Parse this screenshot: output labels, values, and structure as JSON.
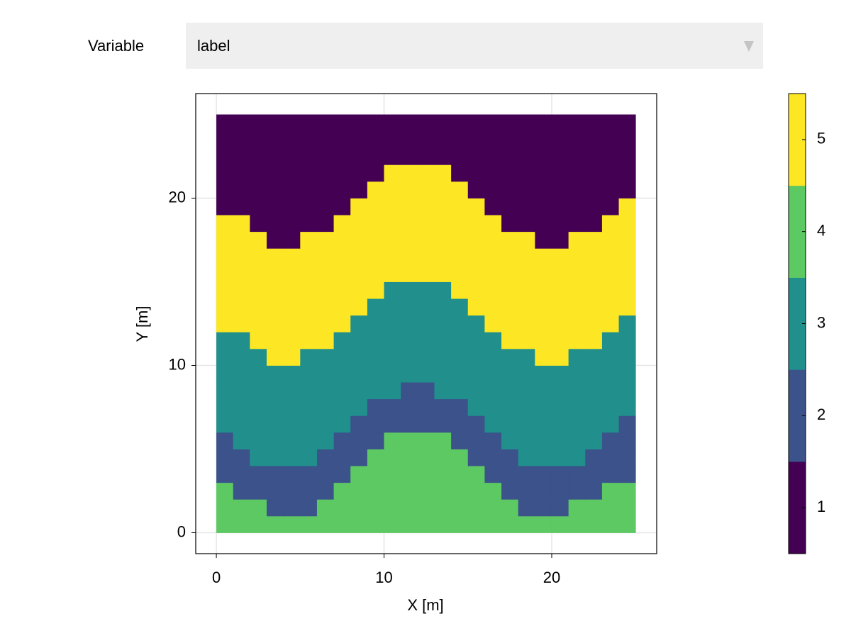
{
  "controls": {
    "label": "Variable",
    "selected": "label"
  },
  "chart_data": {
    "type": "heatmap",
    "xlabel": "X [m]",
    "ylabel": "Y [m]",
    "x": [
      0.5,
      1.5,
      2.5,
      3.5,
      4.5,
      5.5,
      6.5,
      7.5,
      8.5,
      9.5,
      10.5,
      11.5,
      12.5,
      13.5,
      14.5,
      15.5,
      16.5,
      17.5,
      18.5,
      19.5,
      20.5,
      21.5,
      22.5,
      23.5,
      24.5
    ],
    "y": [
      0.5,
      1.5,
      2.5,
      3.5,
      4.5,
      5.5,
      6.5,
      7.5,
      8.5,
      9.5,
      10.5,
      11.5,
      12.5,
      13.5,
      14.5,
      15.5,
      16.5,
      17.5,
      18.5,
      19.5,
      20.5,
      21.5,
      22.5,
      23.5,
      24.5
    ],
    "z": [
      [
        4,
        4,
        4,
        4,
        4,
        4,
        4,
        4,
        4,
        4,
        4,
        4,
        4,
        4,
        4,
        4,
        4,
        4,
        4,
        4,
        4,
        4,
        4,
        4,
        4
      ],
      [
        4,
        4,
        4,
        2,
        2,
        2,
        4,
        4,
        4,
        4,
        4,
        4,
        4,
        4,
        4,
        4,
        4,
        4,
        2,
        2,
        2,
        4,
        4,
        4,
        4
      ],
      [
        4,
        2,
        2,
        2,
        2,
        2,
        2,
        4,
        4,
        4,
        4,
        4,
        4,
        4,
        4,
        4,
        4,
        2,
        2,
        2,
        2,
        2,
        2,
        4,
        4
      ],
      [
        2,
        2,
        2,
        2,
        2,
        2,
        2,
        2,
        4,
        4,
        4,
        4,
        4,
        4,
        4,
        4,
        2,
        2,
        2,
        2,
        2,
        2,
        2,
        2,
        2
      ],
      [
        2,
        2,
        3,
        3,
        3,
        3,
        2,
        2,
        2,
        4,
        4,
        4,
        4,
        4,
        4,
        2,
        2,
        2,
        3,
        3,
        3,
        3,
        2,
        2,
        2
      ],
      [
        2,
        3,
        3,
        3,
        3,
        3,
        3,
        2,
        2,
        2,
        4,
        4,
        4,
        4,
        2,
        2,
        2,
        3,
        3,
        3,
        3,
        3,
        3,
        2,
        2
      ],
      [
        3,
        3,
        3,
        3,
        3,
        3,
        3,
        3,
        2,
        2,
        2,
        2,
        2,
        2,
        2,
        2,
        3,
        3,
        3,
        3,
        3,
        3,
        3,
        3,
        2
      ],
      [
        3,
        3,
        3,
        3,
        3,
        3,
        3,
        3,
        3,
        2,
        2,
        2,
        2,
        2,
        2,
        3,
        3,
        3,
        3,
        3,
        3,
        3,
        3,
        3,
        3
      ],
      [
        3,
        3,
        3,
        3,
        3,
        3,
        3,
        3,
        3,
        3,
        3,
        2,
        2,
        3,
        3,
        3,
        3,
        3,
        3,
        3,
        3,
        3,
        3,
        3,
        3
      ],
      [
        3,
        3,
        3,
        3,
        3,
        3,
        3,
        3,
        3,
        3,
        3,
        3,
        3,
        3,
        3,
        3,
        3,
        3,
        3,
        3,
        3,
        3,
        3,
        3,
        3
      ],
      [
        3,
        3,
        3,
        5,
        5,
        3,
        3,
        3,
        3,
        3,
        3,
        3,
        3,
        3,
        3,
        3,
        3,
        3,
        3,
        5,
        5,
        3,
        3,
        3,
        3
      ],
      [
        3,
        3,
        5,
        5,
        5,
        5,
        5,
        3,
        3,
        3,
        3,
        3,
        3,
        3,
        3,
        3,
        3,
        5,
        5,
        5,
        5,
        5,
        5,
        3,
        3
      ],
      [
        5,
        5,
        5,
        5,
        5,
        5,
        5,
        5,
        3,
        3,
        3,
        3,
        3,
        3,
        3,
        3,
        5,
        5,
        5,
        5,
        5,
        5,
        5,
        5,
        3
      ],
      [
        5,
        5,
        5,
        5,
        5,
        5,
        5,
        5,
        5,
        3,
        3,
        3,
        3,
        3,
        3,
        5,
        5,
        5,
        5,
        5,
        5,
        5,
        5,
        5,
        5
      ],
      [
        5,
        5,
        5,
        5,
        5,
        5,
        5,
        5,
        5,
        5,
        3,
        3,
        3,
        3,
        5,
        5,
        5,
        5,
        5,
        5,
        5,
        5,
        5,
        5,
        5
      ],
      [
        5,
        5,
        5,
        5,
        5,
        5,
        5,
        5,
        5,
        5,
        5,
        5,
        5,
        5,
        5,
        5,
        5,
        5,
        5,
        5,
        5,
        5,
        5,
        5,
        5
      ],
      [
        5,
        5,
        5,
        5,
        5,
        5,
        5,
        5,
        5,
        5,
        5,
        5,
        5,
        5,
        5,
        5,
        5,
        5,
        5,
        5,
        5,
        5,
        5,
        5,
        5
      ],
      [
        5,
        5,
        5,
        1,
        1,
        5,
        5,
        5,
        5,
        5,
        5,
        5,
        5,
        5,
        5,
        5,
        5,
        5,
        5,
        1,
        1,
        5,
        5,
        5,
        5
      ],
      [
        5,
        5,
        1,
        1,
        1,
        1,
        1,
        5,
        5,
        5,
        5,
        5,
        5,
        5,
        5,
        5,
        5,
        1,
        1,
        1,
        1,
        1,
        1,
        5,
        5
      ],
      [
        1,
        1,
        1,
        1,
        1,
        1,
        1,
        1,
        5,
        5,
        5,
        5,
        5,
        5,
        5,
        5,
        1,
        1,
        1,
        1,
        1,
        1,
        1,
        1,
        5
      ],
      [
        1,
        1,
        1,
        1,
        1,
        1,
        1,
        1,
        1,
        5,
        5,
        5,
        5,
        5,
        5,
        1,
        1,
        1,
        1,
        1,
        1,
        1,
        1,
        1,
        1
      ],
      [
        1,
        1,
        1,
        1,
        1,
        1,
        1,
        1,
        1,
        1,
        5,
        5,
        5,
        5,
        1,
        1,
        1,
        1,
        1,
        1,
        1,
        1,
        1,
        1,
        1
      ],
      [
        1,
        1,
        1,
        1,
        1,
        1,
        1,
        1,
        1,
        1,
        1,
        1,
        1,
        1,
        1,
        1,
        1,
        1,
        1,
        1,
        1,
        1,
        1,
        1,
        1
      ],
      [
        1,
        1,
        1,
        1,
        1,
        1,
        1,
        1,
        1,
        1,
        1,
        1,
        1,
        1,
        1,
        1,
        1,
        1,
        1,
        1,
        1,
        1,
        1,
        1,
        1
      ],
      [
        1,
        1,
        1,
        1,
        1,
        1,
        1,
        1,
        1,
        1,
        1,
        1,
        1,
        1,
        1,
        1,
        1,
        1,
        1,
        1,
        1,
        1,
        1,
        1,
        1
      ]
    ],
    "xlim": [
      -1.23,
      26.26
    ],
    "ylim": [
      -1.25,
      26.25
    ],
    "xticks": [
      0,
      10,
      20
    ],
    "yticks": [
      0,
      10,
      20
    ],
    "grid": true,
    "colorbar": {
      "levels": [
        1,
        2,
        3,
        4,
        5
      ],
      "colors": [
        "#440154",
        "#3b528b",
        "#21908d",
        "#5dc963",
        "#fde725"
      ],
      "lim": [
        0.5,
        5.5
      ],
      "ticks": [
        1,
        2,
        3,
        4,
        5
      ]
    }
  }
}
